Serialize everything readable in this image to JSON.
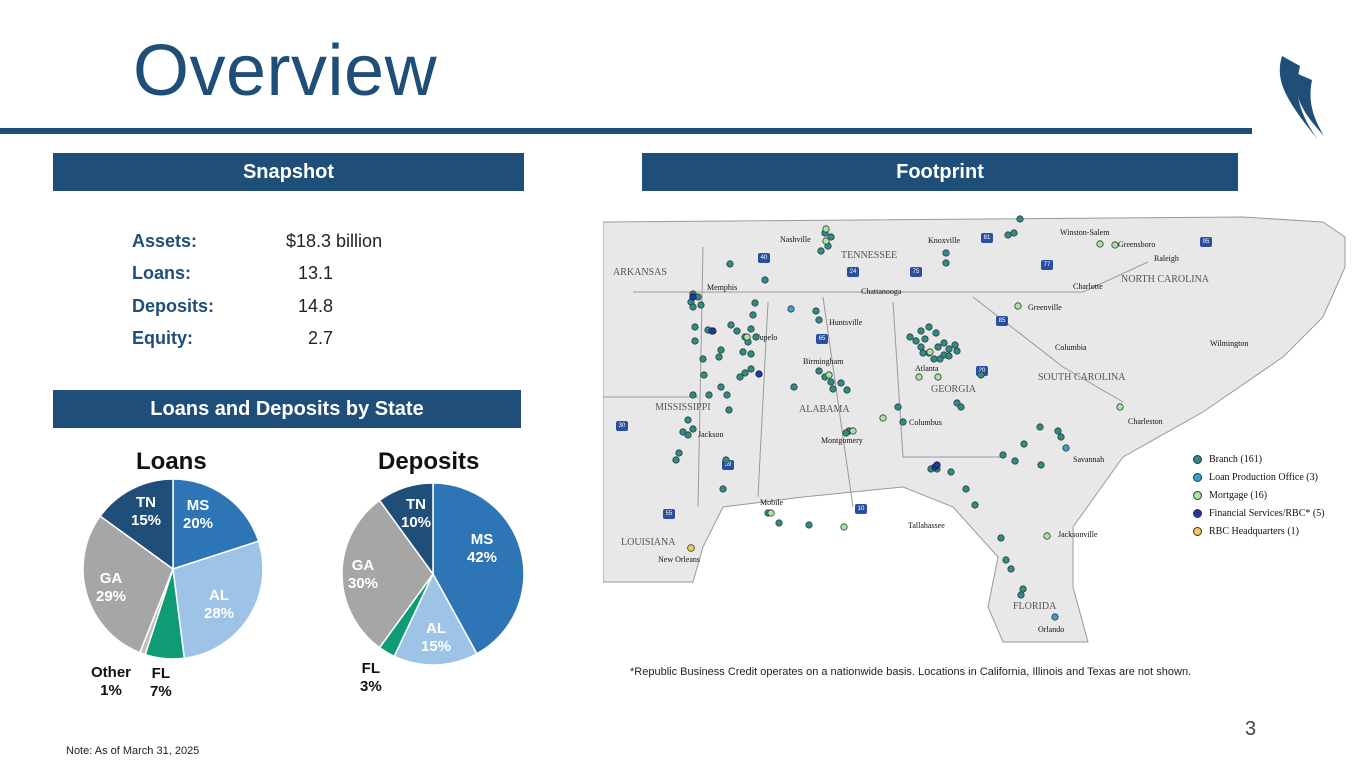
{
  "header": {
    "title": "Overview"
  },
  "banners": {
    "snapshot": "Snapshot",
    "footprint": "Footprint",
    "by_state": "Loans and Deposits by State"
  },
  "snapshot": [
    {
      "label": "Assets:",
      "value": "$18.3 billion"
    },
    {
      "label": "Loans:",
      "value": "13.1"
    },
    {
      "label": "Deposits:",
      "value": "14.8"
    },
    {
      "label": "Equity:",
      "value": "2.7"
    }
  ],
  "colors": {
    "brand": "#1f4e79",
    "ms": "#2e75b6",
    "al": "#9dc3e6",
    "fl": "#0f9b74",
    "other": "#bfbfbf",
    "ga": "#a6a6a6",
    "tn": "#1f4e79",
    "map_land": "#e8e8e8",
    "branch": "#2e8c87",
    "loan_office": "#3aa0d0",
    "mortgage": "#a8e6a0",
    "fin_services": "#1f3aa6",
    "rbc_hq": "#f5c665"
  },
  "chart_data": [
    {
      "type": "pie",
      "title": "Loans",
      "slices": [
        {
          "name": "MS",
          "value": 20,
          "label": "MS",
          "pct": "20%"
        },
        {
          "name": "AL",
          "value": 28,
          "label": "AL",
          "pct": "28%"
        },
        {
          "name": "FL",
          "value": 7,
          "label": "FL",
          "pct": "7%"
        },
        {
          "name": "Other",
          "value": 1,
          "label": "Other",
          "pct": "1%"
        },
        {
          "name": "GA",
          "value": 29,
          "label": "GA",
          "pct": "29%"
        },
        {
          "name": "TN",
          "value": 15,
          "label": "TN",
          "pct": "15%"
        }
      ]
    },
    {
      "type": "pie",
      "title": "Deposits",
      "slices": [
        {
          "name": "MS",
          "value": 42,
          "label": "MS",
          "pct": "42%"
        },
        {
          "name": "AL",
          "value": 15,
          "label": "AL",
          "pct": "15%"
        },
        {
          "name": "FL",
          "value": 3,
          "label": "FL",
          "pct": "3%"
        },
        {
          "name": "GA",
          "value": 30,
          "label": "GA",
          "pct": "30%"
        },
        {
          "name": "TN",
          "value": 10,
          "label": "TN",
          "pct": "10%"
        }
      ]
    }
  ],
  "map": {
    "states": [
      "ARKANSAS",
      "TENNESSEE",
      "NORTH CAROLINA",
      "MISSISSIPPI",
      "ALABAMA",
      "GEORGIA",
      "SOUTH CAROLINA",
      "LOUISIANA",
      "FLORIDA"
    ],
    "cities": [
      "Nashville",
      "Knoxville",
      "Winston-Salem",
      "Greensboro",
      "Raleigh",
      "Memphis",
      "Chattanooga",
      "Charlotte",
      "Greenville",
      "Huntsville",
      "Tupelo",
      "Columbia",
      "Wilmington",
      "Birmingham",
      "Atlanta",
      "Jackson",
      "Montgomery",
      "Columbus",
      "Charleston",
      "Savannah",
      "Mobile",
      "Tallahassee",
      "Jacksonville",
      "New Orleans",
      "Orlando"
    ],
    "interstates": [
      "40",
      "24",
      "75",
      "81",
      "77",
      "85",
      "95",
      "65",
      "20",
      "55",
      "59",
      "10",
      "30"
    ]
  },
  "legend": [
    {
      "label": "Branch (161)",
      "color": "#2e8c87"
    },
    {
      "label": "Loan Production Office (3)",
      "color": "#3aa0d0"
    },
    {
      "label": "Mortgage (16)",
      "color": "#a8e6a0"
    },
    {
      "label": "Financial Services/RBC* (5)",
      "color": "#1f3aa6"
    },
    {
      "label": "RBC Headquarters (1)",
      "color": "#f5c665"
    }
  ],
  "footnotes": {
    "rbc": "*Republic Business Credit operates on a nationwide basis. Locations in California, Illinois and Texas are not shown.",
    "note": "Note: As of March 31, 2025"
  },
  "page_number": "3"
}
